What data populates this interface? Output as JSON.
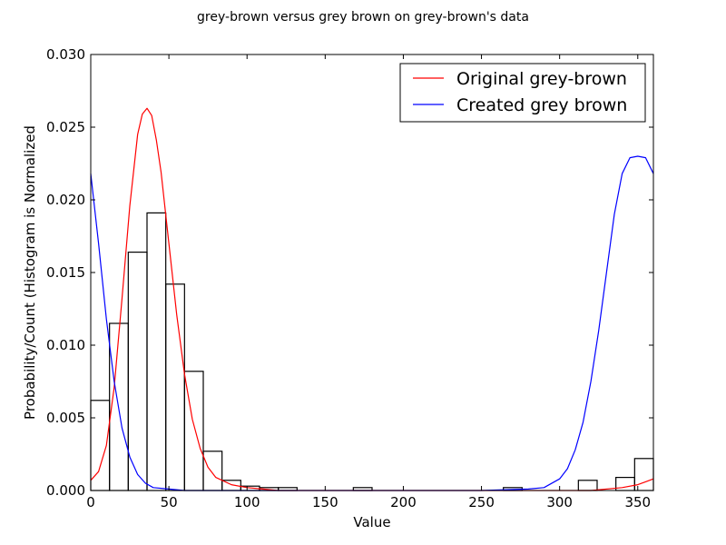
{
  "chart_data": {
    "type": "bar",
    "title": "grey-brown versus grey brown on grey-brown's data",
    "xlabel": "Value",
    "ylabel": "Probability/Count (Histogram is Normalized",
    "xlim": [
      0,
      360
    ],
    "ylim": [
      0,
      0.03
    ],
    "xticks": [
      0,
      50,
      100,
      150,
      200,
      250,
      300,
      350
    ],
    "yticks": [
      0.0,
      0.005,
      0.01,
      0.015,
      0.02,
      0.025,
      0.03
    ],
    "ytick_labels": [
      "0.000",
      "0.005",
      "0.010",
      "0.015",
      "0.020",
      "0.025",
      "0.030"
    ],
    "grid": false,
    "legend_position": "top-right",
    "histogram": {
      "bin_width": 12,
      "bins_start": [
        0,
        12,
        24,
        36,
        48,
        60,
        72,
        84,
        96,
        108,
        120,
        132,
        144,
        156,
        168,
        180,
        192,
        204,
        216,
        228,
        240,
        252,
        264,
        276,
        288,
        300,
        312,
        324,
        336,
        348
      ],
      "values": [
        0.0062,
        0.0115,
        0.0164,
        0.0191,
        0.0142,
        0.0082,
        0.0027,
        0.0007,
        0.0003,
        0.0002,
        0.0002,
        0.0,
        0.0,
        0.0,
        0.0002,
        0.0,
        0.0,
        0.0,
        0.0,
        0.0,
        0.0,
        0.0,
        0.0002,
        0.0,
        0.0,
        0.0,
        0.0007,
        0.0,
        0.0009,
        0.0022
      ]
    },
    "series": [
      {
        "name": "Original grey-brown",
        "color": "#ff0000",
        "x": [
          0,
          5,
          10,
          15,
          20,
          25,
          30,
          33,
          36,
          39,
          42,
          45,
          50,
          55,
          60,
          65,
          70,
          75,
          80,
          90,
          100,
          110,
          120,
          140,
          160,
          200,
          250,
          300,
          320,
          340,
          350,
          355,
          360
        ],
        "y": [
          0.0007,
          0.0013,
          0.0031,
          0.0071,
          0.0132,
          0.0196,
          0.0245,
          0.0259,
          0.0263,
          0.0258,
          0.0241,
          0.0219,
          0.017,
          0.0121,
          0.008,
          0.0049,
          0.0029,
          0.0016,
          0.0009,
          0.0004,
          0.0002,
          0.0001,
          0.0,
          0.0,
          0.0,
          0.0,
          0.0,
          0.0,
          0.0,
          0.0002,
          0.0004,
          0.0006,
          0.0008
        ]
      },
      {
        "name": "Created grey brown",
        "color": "#0000ff",
        "x": [
          0,
          5,
          10,
          15,
          20,
          25,
          30,
          35,
          40,
          50,
          60,
          80,
          100,
          150,
          200,
          250,
          280,
          290,
          300,
          305,
          310,
          315,
          320,
          325,
          330,
          335,
          340,
          345,
          350,
          355,
          360
        ],
        "y": [
          0.0218,
          0.017,
          0.0118,
          0.0075,
          0.0043,
          0.0023,
          0.0011,
          0.0005,
          0.0002,
          0.0001,
          0.0,
          0.0,
          0.0,
          0.0,
          0.0,
          0.0,
          0.0001,
          0.0002,
          0.0008,
          0.0015,
          0.0028,
          0.0047,
          0.0075,
          0.011,
          0.015,
          0.019,
          0.0218,
          0.0229,
          0.023,
          0.0229,
          0.0218
        ]
      }
    ]
  }
}
